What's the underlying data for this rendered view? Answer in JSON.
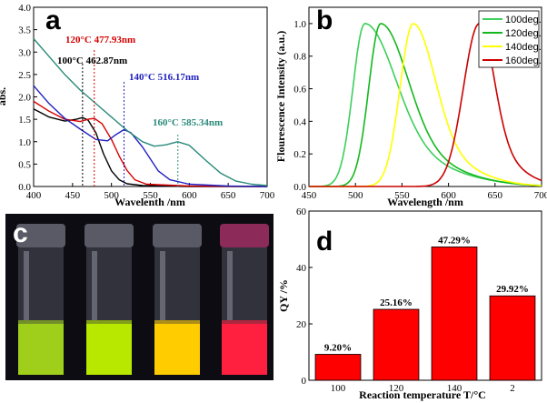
{
  "chart_data": [
    {
      "panel": "a",
      "type": "line",
      "xlabel": "Wavelenth /nm",
      "ylabel": "abs.",
      "xlim": [
        400,
        700
      ],
      "ylim": [
        0,
        4.0
      ],
      "x_ticks": [
        400,
        450,
        500,
        550,
        600,
        650,
        700
      ],
      "y_ticks": [
        0.0,
        0.5,
        1.0,
        1.5,
        2.0,
        2.5,
        3.0,
        3.5,
        4.0
      ],
      "annotations": [
        {
          "text": "120°C 477.93nm",
          "x": 477.93,
          "color": "#d40000"
        },
        {
          "text": "100°C 462.87nm",
          "x": 462.87,
          "color": "#000000"
        },
        {
          "text": "140°C 516.17nm",
          "x": 516.17,
          "color": "#2020c0"
        },
        {
          "text": "160°C 585.34nm",
          "x": 585.34,
          "color": "#2a8a7a"
        }
      ],
      "series": [
        {
          "color": "#000000",
          "points": [
            [
              400,
              1.73
            ],
            [
              420,
              1.55
            ],
            [
              440,
              1.46
            ],
            [
              455,
              1.5
            ],
            [
              463,
              1.54
            ],
            [
              470,
              1.48
            ],
            [
              480,
              1.2
            ],
            [
              490,
              0.72
            ],
            [
              500,
              0.35
            ],
            [
              510,
              0.15
            ],
            [
              520,
              0.06
            ],
            [
              540,
              0.02
            ],
            [
              600,
              0.0
            ],
            [
              700,
              0.0
            ]
          ]
        },
        {
          "color": "#d40000",
          "points": [
            [
              400,
              1.9
            ],
            [
              420,
              1.68
            ],
            [
              440,
              1.5
            ],
            [
              460,
              1.45
            ],
            [
              470,
              1.5
            ],
            [
              478,
              1.52
            ],
            [
              488,
              1.4
            ],
            [
              500,
              1.05
            ],
            [
              510,
              0.68
            ],
            [
              520,
              0.36
            ],
            [
              530,
              0.15
            ],
            [
              545,
              0.05
            ],
            [
              600,
              0.01
            ],
            [
              700,
              0.0
            ]
          ]
        },
        {
          "color": "#2020c0",
          "points": [
            [
              400,
              2.25
            ],
            [
              420,
              1.85
            ],
            [
              440,
              1.52
            ],
            [
              460,
              1.28
            ],
            [
              480,
              1.05
            ],
            [
              495,
              1.02
            ],
            [
              505,
              1.15
            ],
            [
              516,
              1.27
            ],
            [
              525,
              1.2
            ],
            [
              540,
              0.88
            ],
            [
              560,
              0.35
            ],
            [
              575,
              0.15
            ],
            [
              600,
              0.05
            ],
            [
              650,
              0.01
            ],
            [
              700,
              0.0
            ]
          ]
        },
        {
          "color": "#2a8a7a",
          "points": [
            [
              400,
              3.3
            ],
            [
              420,
              2.9
            ],
            [
              440,
              2.5
            ],
            [
              460,
              2.15
            ],
            [
              480,
              1.85
            ],
            [
              500,
              1.55
            ],
            [
              520,
              1.25
            ],
            [
              540,
              1.0
            ],
            [
              555,
              0.9
            ],
            [
              570,
              0.93
            ],
            [
              585,
              1.0
            ],
            [
              600,
              0.92
            ],
            [
              620,
              0.6
            ],
            [
              640,
              0.3
            ],
            [
              660,
              0.12
            ],
            [
              680,
              0.05
            ],
            [
              700,
              0.02
            ]
          ]
        }
      ]
    },
    {
      "panel": "b",
      "type": "line",
      "xlabel": "Wavelength /nm",
      "ylabel": "Flourescence Intensity (a.u.)",
      "xlim": [
        450,
        700
      ],
      "ylim": [
        0,
        1.1
      ],
      "x_ticks": [
        450,
        500,
        550,
        600,
        650,
        700
      ],
      "y_ticks": [
        0.0,
        0.2,
        0.4,
        0.6,
        0.8,
        1.0
      ],
      "series": [
        {
          "name": "100deg.",
          "color": "#3ccf5a",
          "peak": 510,
          "width_left": 18,
          "width_right": 45
        },
        {
          "name": "120deg.",
          "color": "#14b81e",
          "peak": 527,
          "width_left": 18,
          "width_right": 40
        },
        {
          "name": "140deg.",
          "color": "#ffff00",
          "peak": 562,
          "width_left": 20,
          "width_right": 32
        },
        {
          "name": "160deg.",
          "color": "#cc0000",
          "peak": 633,
          "width_left": 24,
          "width_right": 22
        }
      ]
    },
    {
      "panel": "d",
      "type": "bar",
      "xlabel": "Reaction temperature T/°C",
      "ylabel": "QY /%",
      "categories": [
        "100",
        "120",
        "140",
        "2"
      ],
      "values": [
        9.2,
        25.16,
        47.29,
        29.92
      ],
      "value_labels": [
        "9.20%",
        "25.16%",
        "47.29%",
        "29.92%"
      ],
      "ylim": [
        0,
        60
      ],
      "y_ticks": [
        0,
        20,
        40,
        60
      ],
      "bar_color": "#ff0000"
    }
  ],
  "photo": {
    "panel": "c",
    "vial_colors": [
      "#9fcf1a",
      "#b8e800",
      "#ffcc00",
      "#ff2040"
    ]
  },
  "letters": {
    "a": "a",
    "b": "b",
    "c": "c",
    "d": "d"
  }
}
